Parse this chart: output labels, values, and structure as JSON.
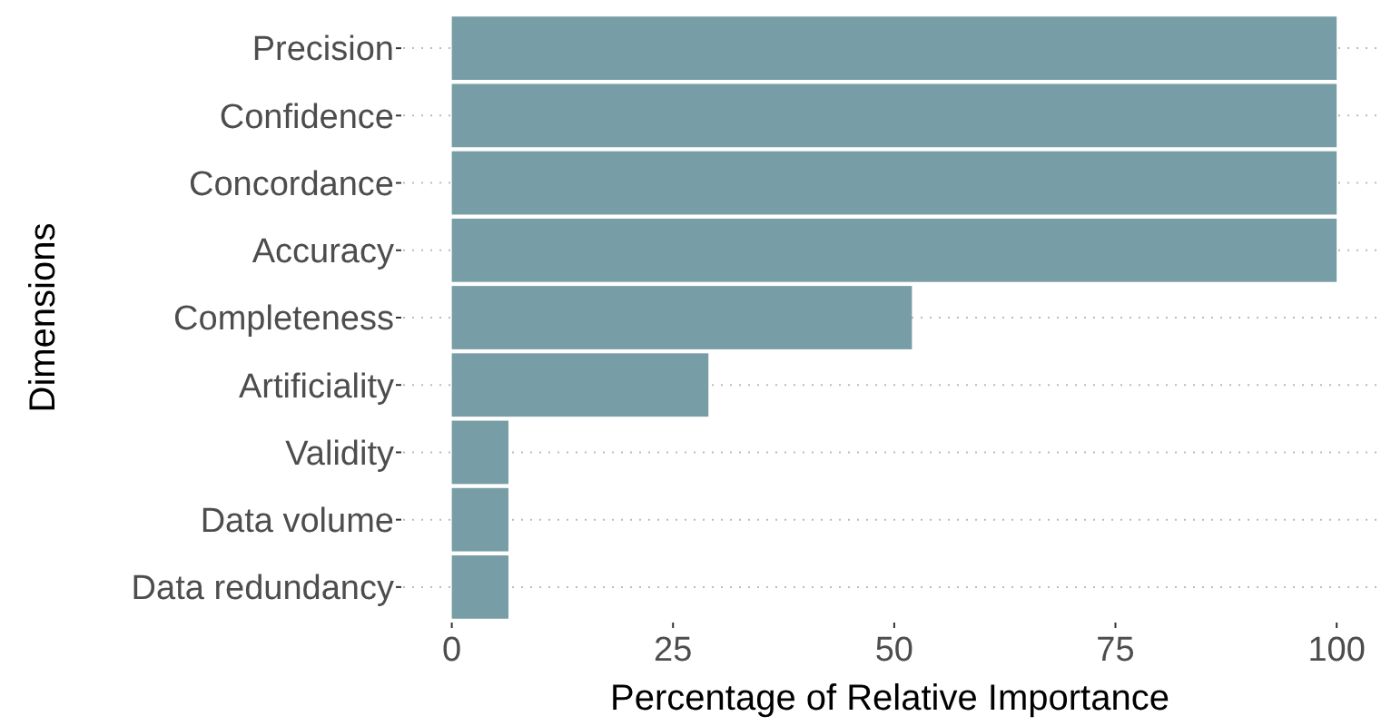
{
  "chart_data": {
    "type": "bar",
    "orientation": "horizontal",
    "xlabel": "Percentage of Relative Importance",
    "ylabel": "Dimensions",
    "categories": [
      "Precision",
      "Confidence",
      "Concordance",
      "Accuracy",
      "Completeness",
      "Artificiality",
      "Validity",
      "Data volume",
      "Data redundancy"
    ],
    "values": [
      100,
      100,
      100,
      100,
      52,
      29,
      6.4,
      6.4,
      6.4
    ],
    "color": "#779da6",
    "xlim": [
      -5.5,
      104.5
    ],
    "xticks": [
      0,
      25,
      50,
      75,
      100
    ],
    "grid": "y"
  }
}
